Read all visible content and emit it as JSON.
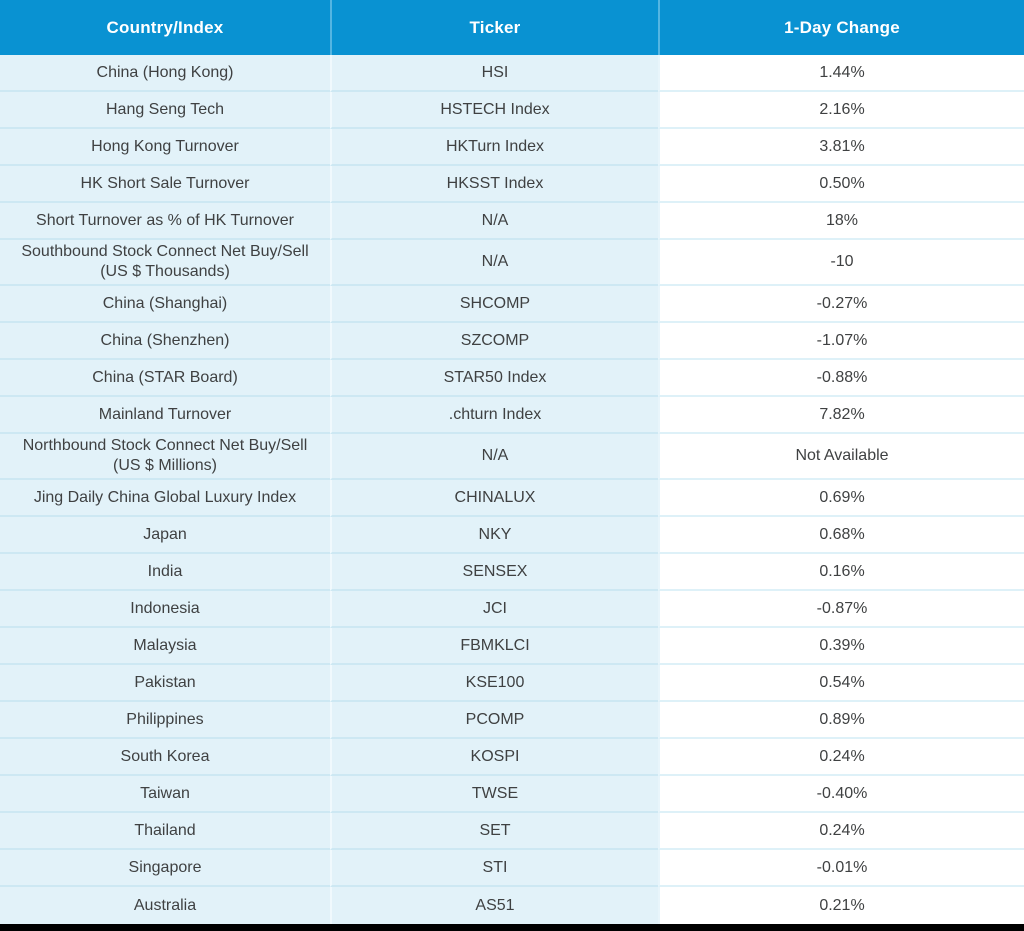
{
  "table": {
    "columns": [
      "Country/Index",
      "Ticker",
      "1-Day Change"
    ],
    "rows": [
      {
        "country": "China (Hong Kong)",
        "ticker": "HSI",
        "change": "1.44%"
      },
      {
        "country": "Hang Seng Tech",
        "ticker": "HSTECH Index",
        "change": "2.16%"
      },
      {
        "country": "Hong Kong Turnover",
        "ticker": "HKTurn Index",
        "change": "3.81%"
      },
      {
        "country": "HK Short Sale Turnover",
        "ticker": "HKSST Index",
        "change": "0.50%"
      },
      {
        "country": "Short Turnover as % of HK Turnover",
        "ticker": "N/A",
        "change": "18%"
      },
      {
        "country": "Southbound Stock Connect Net Buy/Sell (US $ Thousands)",
        "ticker": "N/A",
        "change": "-10"
      },
      {
        "country": "China (Shanghai)",
        "ticker": "SHCOMP",
        "change": "-0.27%"
      },
      {
        "country": "China (Shenzhen)",
        "ticker": "SZCOMP",
        "change": "-1.07%"
      },
      {
        "country": "China (STAR Board)",
        "ticker": "STAR50 Index",
        "change": "-0.88%"
      },
      {
        "country": "Mainland Turnover",
        "ticker": ".chturn Index",
        "change": "7.82%"
      },
      {
        "country": "Northbound Stock Connect Net Buy/Sell (US $ Millions)",
        "ticker": "N/A",
        "change": "Not Available"
      },
      {
        "country": "Jing Daily China Global Luxury Index",
        "ticker": "CHINALUX",
        "change": "0.69%"
      },
      {
        "country": "Japan",
        "ticker": "NKY",
        "change": "0.68%"
      },
      {
        "country": "India",
        "ticker": "SENSEX",
        "change": "0.16%"
      },
      {
        "country": "Indonesia",
        "ticker": "JCI",
        "change": "-0.87%"
      },
      {
        "country": "Malaysia",
        "ticker": "FBMKLCI",
        "change": "0.39%"
      },
      {
        "country": "Pakistan",
        "ticker": "KSE100",
        "change": "0.54%"
      },
      {
        "country": "Philippines",
        "ticker": "PCOMP",
        "change": "0.89%"
      },
      {
        "country": "South Korea",
        "ticker": "KOSPI",
        "change": "0.24%"
      },
      {
        "country": "Taiwan",
        "ticker": "TWSE",
        "change": "-0.40%"
      },
      {
        "country": "Thailand",
        "ticker": "SET",
        "change": "0.24%"
      },
      {
        "country": "Singapore",
        "ticker": "STI",
        "change": "-0.01%"
      },
      {
        "country": "Australia",
        "ticker": "AS51",
        "change": "0.21%"
      }
    ]
  },
  "chart_data": {
    "type": "table",
    "title": "Asia market 1-day change by country/index",
    "columns": [
      "Country/Index",
      "Ticker",
      "1-Day Change"
    ],
    "rows": [
      [
        "China (Hong Kong)",
        "HSI",
        "1.44%"
      ],
      [
        "Hang Seng Tech",
        "HSTECH Index",
        "2.16%"
      ],
      [
        "Hong Kong Turnover",
        "HKTurn Index",
        "3.81%"
      ],
      [
        "HK Short Sale Turnover",
        "HKSST Index",
        "0.50%"
      ],
      [
        "Short Turnover as % of HK Turnover",
        "N/A",
        "18%"
      ],
      [
        "Southbound Stock Connect Net Buy/Sell (US $ Thousands)",
        "N/A",
        "-10"
      ],
      [
        "China (Shanghai)",
        "SHCOMP",
        "-0.27%"
      ],
      [
        "China (Shenzhen)",
        "SZCOMP",
        "-1.07%"
      ],
      [
        "China (STAR Board)",
        "STAR50 Index",
        "-0.88%"
      ],
      [
        "Mainland Turnover",
        ".chturn Index",
        "7.82%"
      ],
      [
        "Northbound Stock Connect Net Buy/Sell (US $ Millions)",
        "N/A",
        "Not Available"
      ],
      [
        "Jing Daily China Global Luxury Index",
        "CHINALUX",
        "0.69%"
      ],
      [
        "Japan",
        "NKY",
        "0.68%"
      ],
      [
        "India",
        "SENSEX",
        "0.16%"
      ],
      [
        "Indonesia",
        "JCI",
        "-0.87%"
      ],
      [
        "Malaysia",
        "FBMKLCI",
        "0.39%"
      ],
      [
        "Pakistan",
        "KSE100",
        "0.54%"
      ],
      [
        "Philippines",
        "PCOMP",
        "0.89%"
      ],
      [
        "South Korea",
        "KOSPI",
        "0.24%"
      ],
      [
        "Taiwan",
        "TWSE",
        "-0.40%"
      ],
      [
        "Thailand",
        "SET",
        "0.24%"
      ],
      [
        "Singapore",
        "STI",
        "-0.01%"
      ],
      [
        "Australia",
        "AS51",
        "0.21%"
      ]
    ]
  },
  "colors": {
    "header_bg": "#0992D2",
    "header_text": "#FFFFFF",
    "header_divider": "#54B5E2",
    "row_bg": "#E2F2F9",
    "row_divider": "#CDE8F3",
    "value_bg": "#FFFFFF",
    "value_divider": "#DEF1F8",
    "text": "#3F4142",
    "bottom_bar": "#000000"
  }
}
